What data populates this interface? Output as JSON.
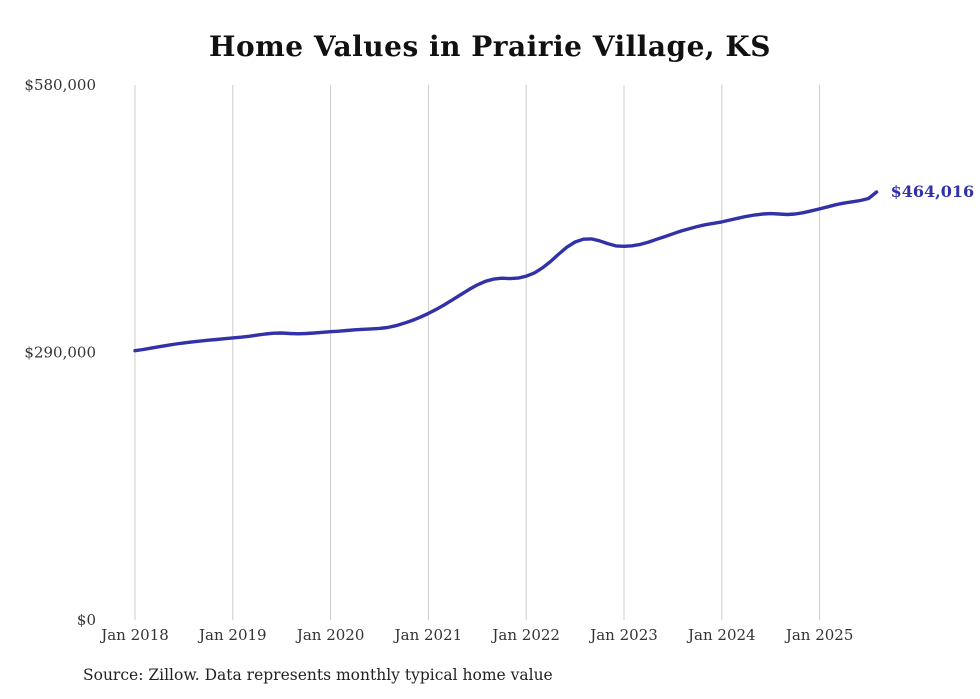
{
  "page": {
    "title": "Home Values in Prairie Village, KS",
    "source_note": "Source: Zillow. Data represents monthly typical home value"
  },
  "chart_data": {
    "type": "line",
    "title": "Home Values in Prairie Village, KS",
    "series_name": "Monthly typical home value",
    "x_tick_labels": [
      "Jan 2018",
      "Jan 2019",
      "Jan 2020",
      "Jan 2021",
      "Jan 2022",
      "Jan 2023",
      "Jan 2024",
      "Jan 2025"
    ],
    "y_ticks": [
      0,
      290000,
      580000
    ],
    "y_tick_labels": [
      "$0",
      "$290,000",
      "$580,000"
    ],
    "ylim": [
      0,
      580000
    ],
    "grid": "vertical-only",
    "grid_color": "#cccccc",
    "line_color": "#3232a8",
    "end_label": "$464,016",
    "end_value": 464016,
    "x_start": "2018-01",
    "x_end": "2025-08",
    "values": [
      292000,
      293300,
      294800,
      296300,
      297800,
      299200,
      300400,
      301500,
      302400,
      303300,
      304100,
      305000,
      305800,
      306600,
      307600,
      308900,
      310100,
      310900,
      311100,
      310600,
      310300,
      310600,
      311100,
      311900,
      312600,
      313100,
      313900,
      314600,
      315100,
      315600,
      316100,
      317100,
      319100,
      321700,
      324700,
      328300,
      332400,
      336900,
      341900,
      347400,
      352900,
      358400,
      363300,
      367200,
      369600,
      370600,
      370100,
      370700,
      372700,
      376300,
      381800,
      388800,
      396800,
      404300,
      409800,
      412800,
      413200,
      411100,
      408100,
      405600,
      405100,
      405700,
      407200,
      409700,
      412700,
      415700,
      418700,
      421700,
      424200,
      426600,
      428600,
      430100,
      431600,
      433600,
      435600,
      437600,
      439100,
      440100,
      440600,
      440100,
      439600,
      440100,
      441600,
      443600,
      445700,
      448000,
      450200,
      452000,
      453400,
      454800,
      457000,
      464016
    ]
  }
}
